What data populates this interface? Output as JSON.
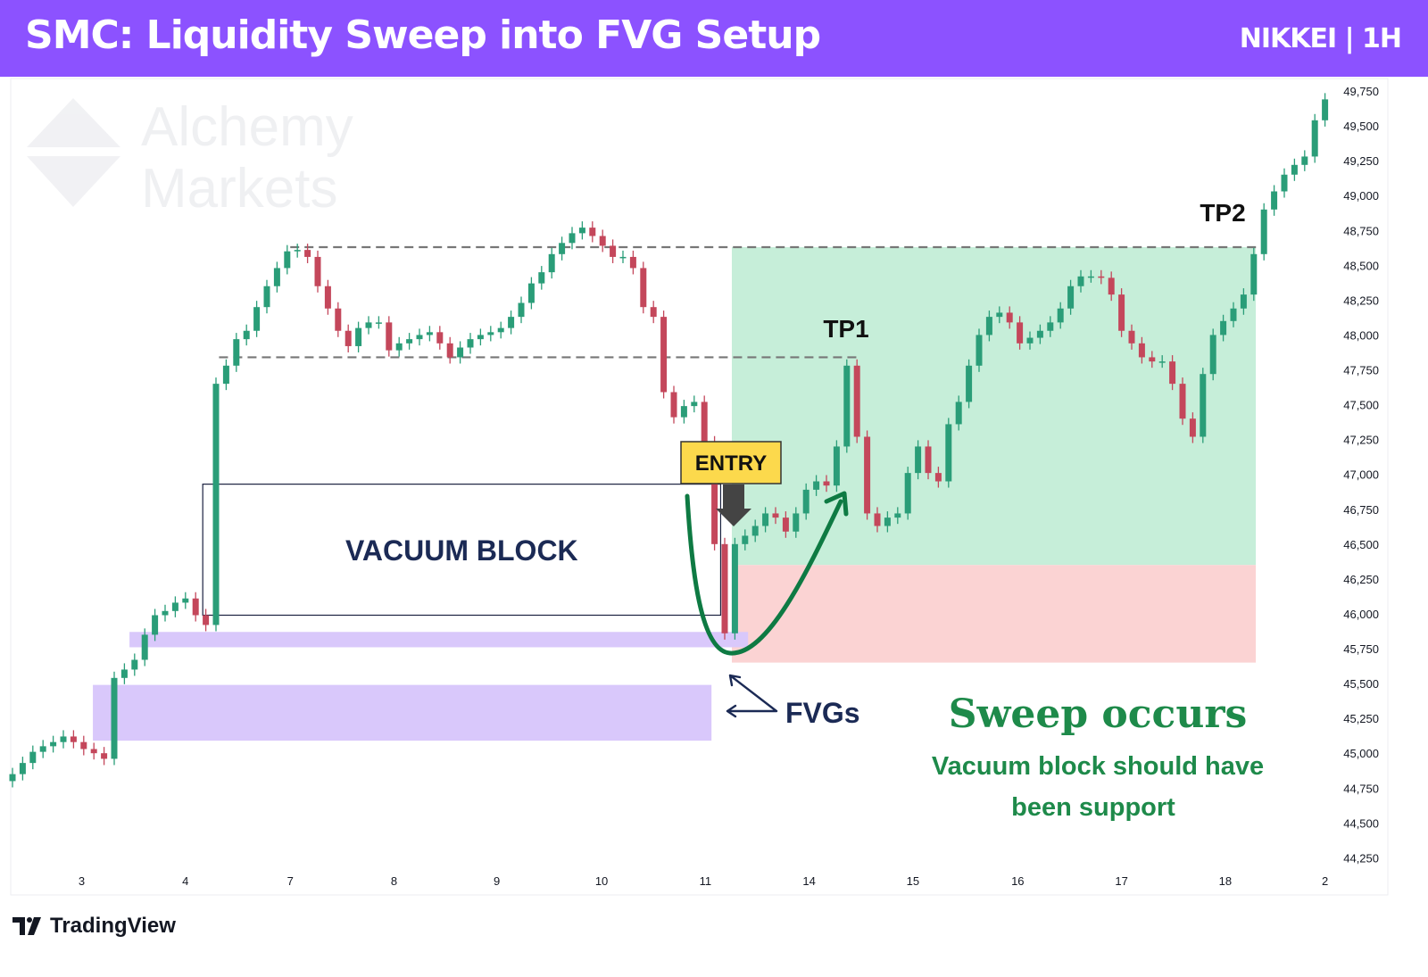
{
  "header": {
    "title": "SMC: Liquidity Sweep into FVG Setup",
    "symbol": "NIKKEI | 1H",
    "background": "#8c52ff"
  },
  "watermark": {
    "text_line1": "Alchemy",
    "text_line2": "Markets"
  },
  "footer": {
    "brand": "TradingView"
  },
  "chart_data": {
    "type": "candlestick",
    "title": "SMC: Liquidity Sweep into FVG Setup",
    "instrument": "NIKKEI",
    "timeframe": "1H",
    "ylim": [
      44150,
      49850
    ],
    "yticks": [
      49750,
      49500,
      49250,
      49000,
      48750,
      48500,
      48250,
      48000,
      47750,
      47500,
      47250,
      47000,
      46750,
      46500,
      46250,
      46000,
      45750,
      45500,
      45250,
      45000,
      44750,
      44500,
      44250
    ],
    "xticks": [
      {
        "label": "3",
        "at": 6.8
      },
      {
        "label": "4",
        "at": 17
      },
      {
        "label": "7",
        "at": 27.3
      },
      {
        "label": "8",
        "at": 37.5
      },
      {
        "label": "9",
        "at": 47.6
      },
      {
        "label": "10",
        "at": 57.9
      },
      {
        "label": "11",
        "at": 68.1
      },
      {
        "label": "14",
        "at": 78.3
      },
      {
        "label": "15",
        "at": 88.5
      },
      {
        "label": "16",
        "at": 98.8
      },
      {
        "label": "17",
        "at": 109
      },
      {
        "label": "18",
        "at": 119.2
      },
      {
        "label": "2",
        "at": 129
      }
    ],
    "colors": {
      "up": "#2a9d78",
      "down": "#c4475b"
    },
    "first_open": 44800,
    "close": [
      44850,
      44930,
      45010,
      45050,
      45080,
      45120,
      45080,
      45030,
      45000,
      44960,
      45540,
      45600,
      45670,
      45850,
      45990,
      46020,
      46080,
      46110,
      45990,
      45920,
      47650,
      47780,
      47970,
      48030,
      48200,
      48350,
      48480,
      48600,
      48610,
      48560,
      48350,
      48190,
      48030,
      47920,
      48050,
      48090,
      48090,
      47890,
      47940,
      47970,
      48000,
      48020,
      47940,
      47840,
      47910,
      47970,
      48000,
      48020,
      48050,
      48130,
      48230,
      48370,
      48450,
      48580,
      48660,
      48730,
      48770,
      48710,
      48640,
      48560,
      48560,
      48480,
      48200,
      48130,
      47590,
      47410,
      47490,
      47520,
      47230,
      46500,
      45860,
      46500,
      46560,
      46630,
      46720,
      46690,
      46590,
      46720,
      46890,
      46950,
      46920,
      47200,
      47780,
      47270,
      46720,
      46630,
      46690,
      46720,
      47010,
      47200,
      47010,
      46950,
      47360,
      47520,
      47780,
      48000,
      48130,
      48160,
      48090,
      47940,
      47980,
      48030,
      48090,
      48190,
      48350,
      48420,
      48420,
      48410,
      48290,
      48030,
      47940,
      47840,
      47810,
      47810,
      47650,
      47400,
      47270,
      47720,
      48000,
      48100,
      48190,
      48290,
      48580,
      48900,
      49030,
      49150,
      49220,
      49280,
      49540,
      49690
    ],
    "annotations": {
      "liquidity_high": {
        "price": 48630,
        "from": 27.3,
        "to": 122.5
      },
      "tp1_level": {
        "price": 47840,
        "from": 20.3,
        "to": 83
      },
      "vacuum_block": {
        "label": "VACUUM BLOCK",
        "top": 46930,
        "bottom": 45990,
        "from": 18.7,
        "to": 69.6
      },
      "fvg_upper": {
        "top": 45870,
        "bottom": 45760,
        "from": 11.5,
        "to": 72.3,
        "color": "#d9c8fb"
      },
      "fvg_lower": {
        "top": 45490,
        "bottom": 45090,
        "from": 7.9,
        "to": 68.7,
        "color": "#d9c8fb"
      },
      "target_zone": {
        "top": 48630,
        "bottom": 46350,
        "from": 70.7,
        "to": 122.2,
        "color": "#c6eed9"
      },
      "stop_zone": {
        "top": 46350,
        "bottom": 45650,
        "from": 70.7,
        "to": 122.2,
        "color": "#fbd3d3"
      },
      "entry_label": "ENTRY",
      "tp1_label": "TP1",
      "tp2_label": "TP2",
      "fvg_label": "FVGs",
      "headline": "Sweep occurs",
      "subline1": "Vacuum block should have",
      "subline2": "been support",
      "accent_green": "#1e8a4a"
    }
  }
}
